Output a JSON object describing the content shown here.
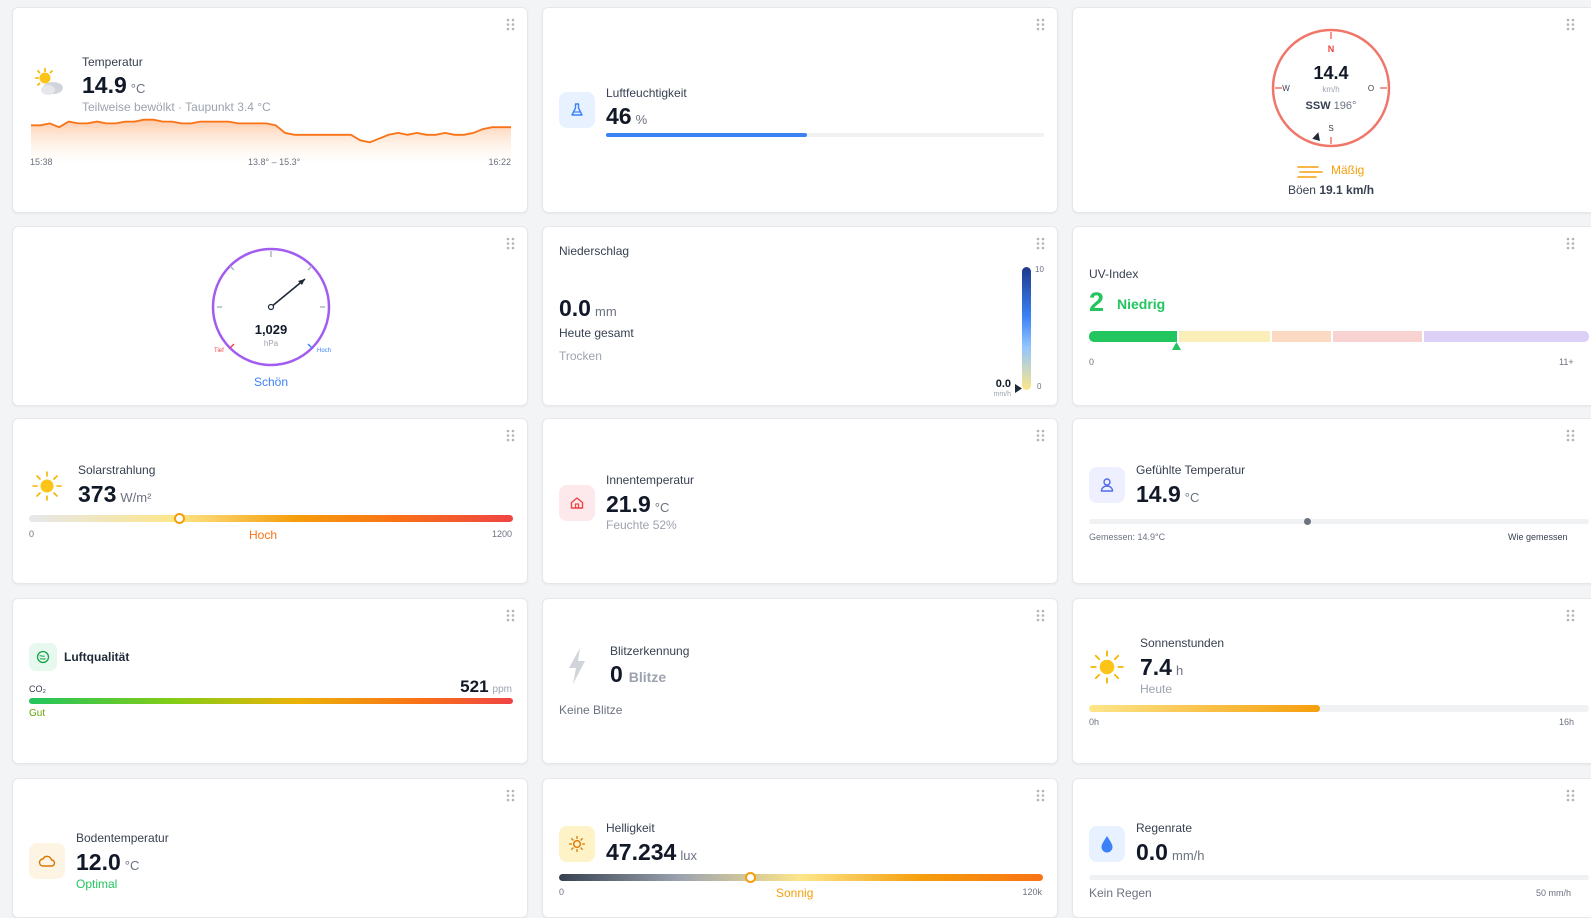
{
  "temperature": {
    "label": "Temperatur",
    "value": "14.9",
    "unit": "°C",
    "condition": "Teilweise bewölkt · Taupunkt 3.4 °C",
    "start_time": "15:38",
    "range": "13.8° – 15.3°",
    "end_time": "16:22",
    "icon": "partly-cloudy-icon",
    "spark": [
      15.0,
      15.0,
      15.1,
      14.9,
      15.2,
      15.1,
      15.1,
      15.2,
      15.1,
      15.1,
      15.2,
      15.2,
      15.3,
      15.3,
      15.2,
      15.2,
      15.1,
      15.1,
      15.2,
      15.2,
      15.2,
      15.2,
      15.1,
      15.1,
      15.1,
      15.1,
      15.0,
      14.6,
      14.5,
      14.5,
      14.5,
      14.5,
      14.5,
      14.5,
      14.5,
      14.2,
      14.1,
      14.3,
      14.5,
      14.6,
      14.5,
      14.6,
      14.5,
      14.5,
      14.6,
      14.5,
      14.5,
      14.6,
      14.8,
      14.9,
      14.9,
      14.9
    ]
  },
  "humidity": {
    "label": "Luftfeuchtigkeit",
    "value": "46",
    "unit": "%",
    "percent": 46,
    "icon": "flask-icon"
  },
  "wind": {
    "speed": "14.4",
    "unit": "km/h",
    "dir_label": "SSW",
    "dir_deg": "196°",
    "deg": 196,
    "n": "N",
    "e": "O",
    "s": "S",
    "w": "W",
    "strength": "Mäßig",
    "gust_prefix": "Böen",
    "gust": "19.1 km/h",
    "icon": "wind-lines-icon"
  },
  "pressure": {
    "value": "1,029",
    "unit": "hPa",
    "status": "Schön",
    "low": "Tief",
    "high": "Hoch"
  },
  "rain": {
    "label": "Niederschlag",
    "value": "0.0",
    "unit": "mm",
    "total_label": "Heute gesamt",
    "status": "Trocken",
    "rate": "0.0",
    "rate_unit": "mm/h",
    "scale_max": "10",
    "scale_min": "0"
  },
  "uv": {
    "label": "UV-Index",
    "value": "2",
    "level": "Niedrig",
    "min": "0",
    "max": "11+",
    "index": 2
  },
  "solar": {
    "label": "Solarstrahlung",
    "value": "373",
    "unit": "W/m²",
    "level": "Hoch",
    "min": "0",
    "max": "1200",
    "icon": "sun-icon"
  },
  "indoor": {
    "label": "Innentemperatur",
    "value": "21.9",
    "unit": "°C",
    "humidity": "Feuchte 52%",
    "icon": "home-icon"
  },
  "feels": {
    "label": "Gefühlte Temperatur",
    "value": "14.9",
    "unit": "°C",
    "measured": "Gemessen: 14.9°C",
    "compare": "Wie gemessen",
    "icon": "person-icon"
  },
  "air": {
    "label": "Luftqualität",
    "co2_label": "CO₂",
    "value": "521",
    "unit": "ppm",
    "level": "Gut",
    "icon": "air-quality-icon"
  },
  "lightning": {
    "label": "Blitzerkennung",
    "value": "0",
    "unit": "Blitze",
    "status": "Keine Blitze",
    "icon": "lightning-icon"
  },
  "sunhours": {
    "label": "Sonnenstunden",
    "value": "7.4",
    "unit": "h",
    "sub": "Heute",
    "min": "0h",
    "max": "16h",
    "icon": "sun-icon"
  },
  "soil": {
    "label": "Bodentemperatur",
    "value": "12.0",
    "unit": "°C",
    "status": "Optimal",
    "icon": "cloud-icon"
  },
  "brightness": {
    "label": "Helligkeit",
    "value": "47.234",
    "unit": "lux",
    "level": "Sonnig",
    "min": "0",
    "max": "120k",
    "icon": "sun-icon"
  },
  "rainrate": {
    "label": "Regenrate",
    "value": "0.0",
    "unit": "mm/h",
    "status": "Kein Regen",
    "max": "50 mm/h",
    "icon": "drop-icon"
  },
  "colors": {
    "accent": "#3b82f6",
    "orange": "#f97316",
    "green": "#22c55e"
  }
}
